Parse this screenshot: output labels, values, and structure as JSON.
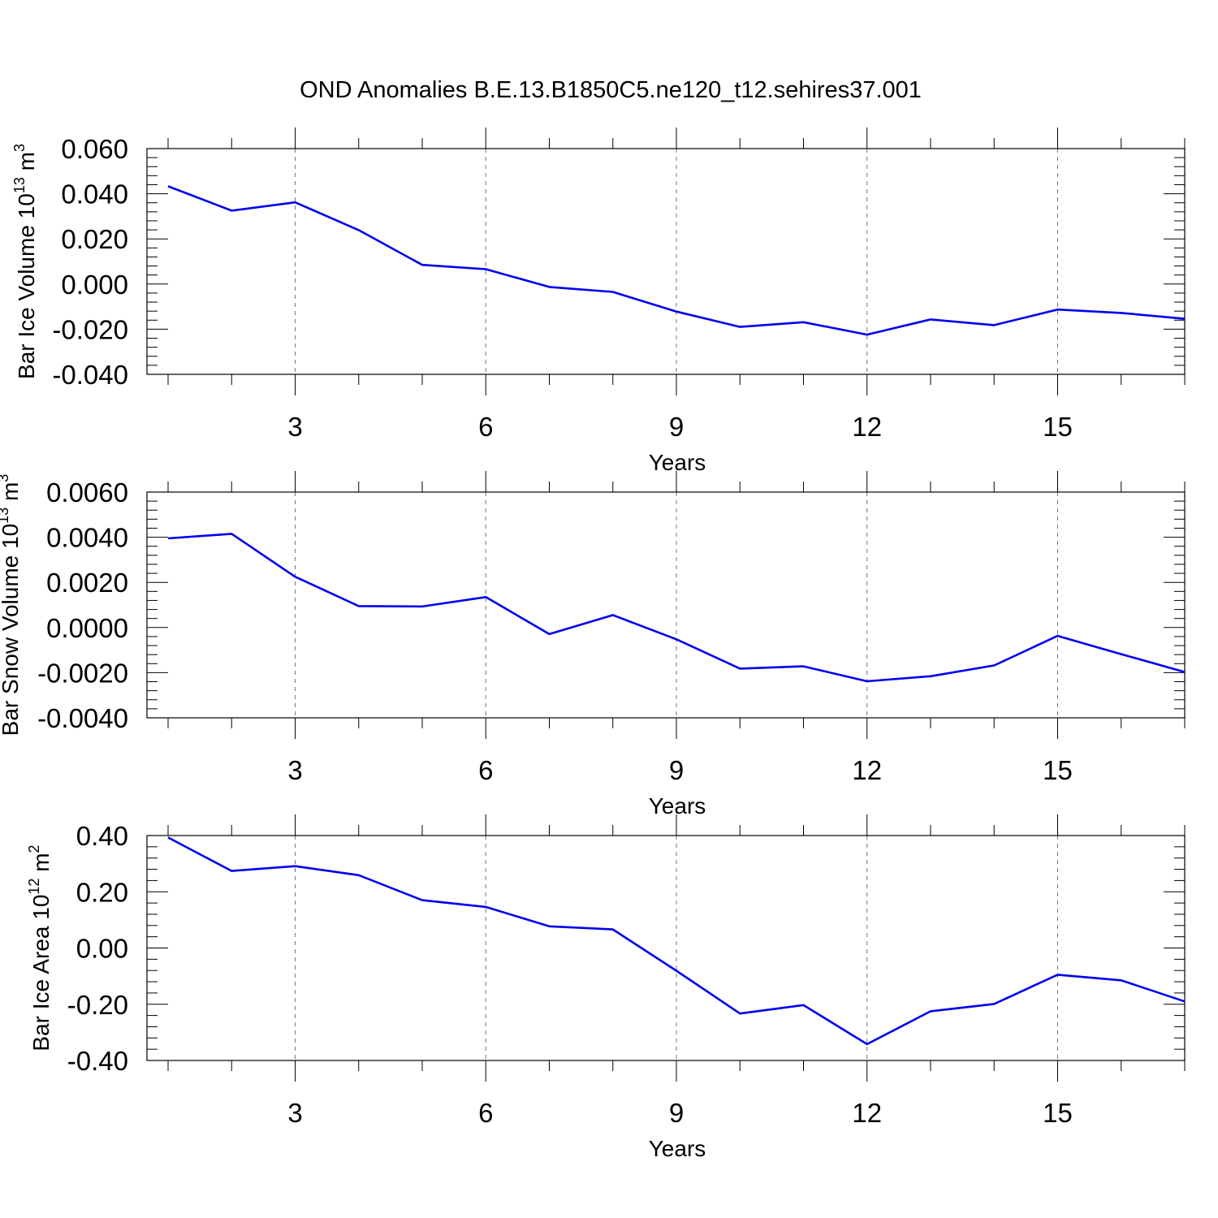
{
  "title": "OND Anomalies B.E.13.B1850C5.ne120_t12.sehires37.001",
  "colors": {
    "series": "#0000ee",
    "grid": "#777777",
    "axis": "#000000"
  },
  "chart_data": [
    {
      "type": "line",
      "ylabel": {
        "main": "Bar Ice Volume 10",
        "sup": "13",
        "unit": " m",
        "unit_sup": "3"
      },
      "xlabel": "Years",
      "xlim": [
        1,
        17
      ],
      "ylim": [
        -0.04,
        0.06
      ],
      "x_ticks": [
        3,
        6,
        9,
        12,
        15
      ],
      "y_ticks": [
        "-0.040",
        "-0.020",
        "0.000",
        "0.020",
        "0.040",
        "0.060"
      ],
      "grid": "vertical dashed at major x ticks",
      "x": [
        1,
        2,
        3,
        4,
        5,
        6,
        7,
        8,
        9,
        10,
        11,
        12,
        13,
        14,
        15,
        16,
        17
      ],
      "values": [
        0.0433,
        0.0325,
        0.0362,
        0.0239,
        0.0085,
        0.0066,
        -0.0013,
        -0.0035,
        -0.0122,
        -0.019,
        -0.0169,
        -0.0224,
        -0.0157,
        -0.0182,
        -0.0113,
        -0.0128,
        -0.0154
      ]
    },
    {
      "type": "line",
      "ylabel": {
        "main": "Bar Snow Volume 10",
        "sup": "13",
        "unit": " m",
        "unit_sup": "3"
      },
      "xlabel": "Years",
      "xlim": [
        1,
        17
      ],
      "ylim": [
        -0.004,
        0.006
      ],
      "x_ticks": [
        3,
        6,
        9,
        12,
        15
      ],
      "y_ticks": [
        "-0.0040",
        "-0.0020",
        "0.0000",
        "0.0020",
        "0.0040",
        "0.0060"
      ],
      "grid": "vertical dashed at major x ticks",
      "x": [
        1,
        2,
        3,
        4,
        5,
        6,
        7,
        8,
        9,
        10,
        11,
        12,
        13,
        14,
        15,
        16,
        17
      ],
      "values": [
        0.00395,
        0.00415,
        0.00225,
        0.00095,
        0.00093,
        0.00135,
        -0.00029,
        0.00055,
        -0.00052,
        -0.00182,
        -0.00172,
        -0.00238,
        -0.00216,
        -0.00168,
        -0.00037,
        -0.00118,
        -0.00197
      ]
    },
    {
      "type": "line",
      "ylabel": {
        "main": "Bar Ice Area 10",
        "sup": "12",
        "unit": " m",
        "unit_sup": "2"
      },
      "xlabel": "Years",
      "xlim": [
        1,
        17
      ],
      "ylim": [
        -0.4,
        0.4
      ],
      "x_ticks": [
        3,
        6,
        9,
        12,
        15
      ],
      "y_ticks": [
        "-0.40",
        "-0.20",
        "0.00",
        "0.20",
        "0.40"
      ],
      "grid": "vertical dashed at major x ticks",
      "x": [
        1,
        2,
        3,
        4,
        5,
        6,
        7,
        8,
        9,
        10,
        11,
        12,
        13,
        14,
        15,
        16,
        17
      ],
      "values": [
        0.393,
        0.274,
        0.291,
        0.259,
        0.17,
        0.146,
        0.077,
        0.066,
        -0.081,
        -0.233,
        -0.203,
        -0.342,
        -0.225,
        -0.199,
        -0.095,
        -0.115,
        -0.19
      ]
    }
  ]
}
